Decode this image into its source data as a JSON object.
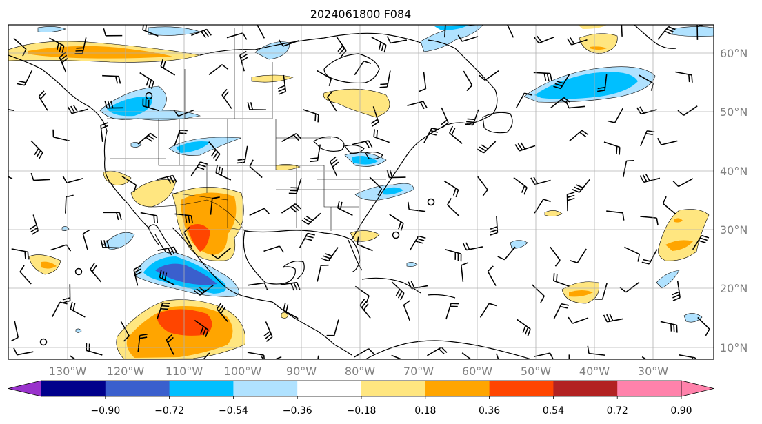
{
  "title": "2024061800 F084",
  "map": {
    "lon_labels": [
      "130°W",
      "120°W",
      "110°W",
      "100°W",
      "90°W",
      "80°W",
      "70°W",
      "60°W",
      "50°W",
      "40°W",
      "30°W"
    ],
    "lat_labels": [
      "60°N",
      "50°N",
      "40°N",
      "30°N",
      "20°N",
      "10°N"
    ],
    "grid": true
  },
  "colorbar": {
    "tick_labels": [
      "−0.90",
      "−0.72",
      "−0.54",
      "−0.36",
      "−0.18",
      "0.18",
      "0.36",
      "0.54",
      "0.72",
      "0.90"
    ],
    "colors": [
      "#9932cc",
      "#00008b",
      "#3a5fcd",
      "#00bfff",
      "#b0e2ff",
      "#ffffff",
      "#ffe680",
      "#ffa500",
      "#ff4500",
      "#b22222",
      "#ff82ab"
    ],
    "extend": "both"
  },
  "shading_colors": {
    "pos1": "#ffe680",
    "pos2": "#ffa500",
    "pos3": "#ff4500",
    "neg1": "#b0e2ff",
    "neg2": "#00bfff",
    "neg3": "#3a5fcd"
  }
}
